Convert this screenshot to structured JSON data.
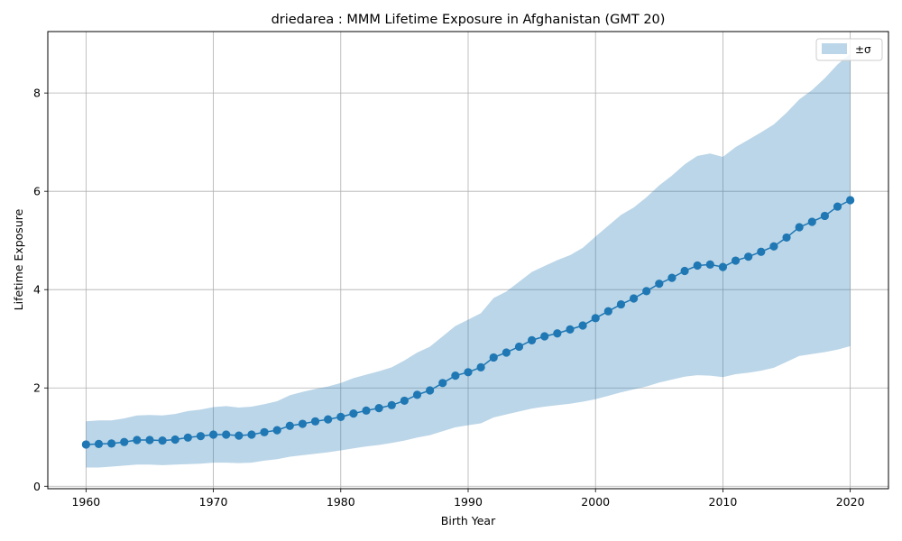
{
  "chart_data": {
    "type": "line",
    "title": "driedarea : MMM Lifetime Exposure in Afghanistan (GMT 20)",
    "xlabel": "Birth Year",
    "ylabel": "Lifetime Exposure",
    "xlim": [
      1957,
      2023
    ],
    "ylim": [
      -0.05,
      9.25
    ],
    "xticks": [
      1960,
      1970,
      1980,
      1990,
      2000,
      2010,
      2020
    ],
    "yticks": [
      0,
      2,
      4,
      6,
      8
    ],
    "grid": true,
    "legend_position": "top-right",
    "colors": {
      "line": "#1f77b4",
      "band": "#1f77b4"
    },
    "x": [
      1960,
      1961,
      1962,
      1963,
      1964,
      1965,
      1966,
      1967,
      1968,
      1969,
      1970,
      1971,
      1972,
      1973,
      1974,
      1975,
      1976,
      1977,
      1978,
      1979,
      1980,
      1981,
      1982,
      1983,
      1984,
      1985,
      1986,
      1987,
      1988,
      1989,
      1990,
      1991,
      1992,
      1993,
      1994,
      1995,
      1996,
      1997,
      1998,
      1999,
      2000,
      2001,
      2002,
      2003,
      2004,
      2005,
      2006,
      2007,
      2008,
      2009,
      2010,
      2011,
      2012,
      2013,
      2014,
      2015,
      2016,
      2017,
      2018,
      2019,
      2020
    ],
    "series": [
      {
        "values": [
          0.85,
          0.86,
          0.87,
          0.9,
          0.94,
          0.94,
          0.93,
          0.95,
          0.99,
          1.02,
          1.05,
          1.05,
          1.03,
          1.05,
          1.1,
          1.14,
          1.23,
          1.27,
          1.32,
          1.36,
          1.41,
          1.48,
          1.54,
          1.59,
          1.65,
          1.74,
          1.86,
          1.95,
          2.1,
          2.25,
          2.32,
          2.42,
          2.62,
          2.72,
          2.84,
          2.97,
          3.05,
          3.11,
          3.19,
          3.27,
          3.42,
          3.56,
          3.7,
          3.82,
          3.97,
          4.12,
          4.24,
          4.38,
          4.49,
          4.51,
          4.46,
          4.59,
          4.67,
          4.77,
          4.88,
          5.06,
          5.27,
          5.38,
          5.5,
          5.69,
          5.82
        ]
      }
    ],
    "band": {
      "legend_label": "±σ",
      "upper": [
        1.32,
        1.34,
        1.34,
        1.38,
        1.44,
        1.45,
        1.44,
        1.47,
        1.53,
        1.56,
        1.61,
        1.63,
        1.6,
        1.62,
        1.67,
        1.73,
        1.85,
        1.92,
        1.98,
        2.03,
        2.1,
        2.2,
        2.27,
        2.34,
        2.42,
        2.56,
        2.72,
        2.84,
        3.05,
        3.26,
        3.39,
        3.52,
        3.83,
        3.96,
        4.16,
        4.36,
        4.48,
        4.6,
        4.7,
        4.85,
        5.08,
        5.3,
        5.52,
        5.67,
        5.88,
        6.12,
        6.32,
        6.55,
        6.72,
        6.77,
        6.7,
        6.9,
        7.05,
        7.2,
        7.36,
        7.6,
        7.87,
        8.06,
        8.3,
        8.58,
        8.8
      ],
      "lower": [
        0.38,
        0.38,
        0.4,
        0.42,
        0.44,
        0.44,
        0.43,
        0.44,
        0.45,
        0.46,
        0.48,
        0.48,
        0.47,
        0.48,
        0.52,
        0.55,
        0.6,
        0.63,
        0.66,
        0.69,
        0.73,
        0.77,
        0.81,
        0.84,
        0.88,
        0.93,
        0.99,
        1.04,
        1.12,
        1.2,
        1.24,
        1.28,
        1.4,
        1.46,
        1.52,
        1.58,
        1.62,
        1.65,
        1.68,
        1.72,
        1.77,
        1.84,
        1.91,
        1.97,
        2.03,
        2.11,
        2.17,
        2.23,
        2.26,
        2.25,
        2.22,
        2.28,
        2.31,
        2.35,
        2.41,
        2.53,
        2.65,
        2.69,
        2.73,
        2.78,
        2.85
      ]
    }
  }
}
